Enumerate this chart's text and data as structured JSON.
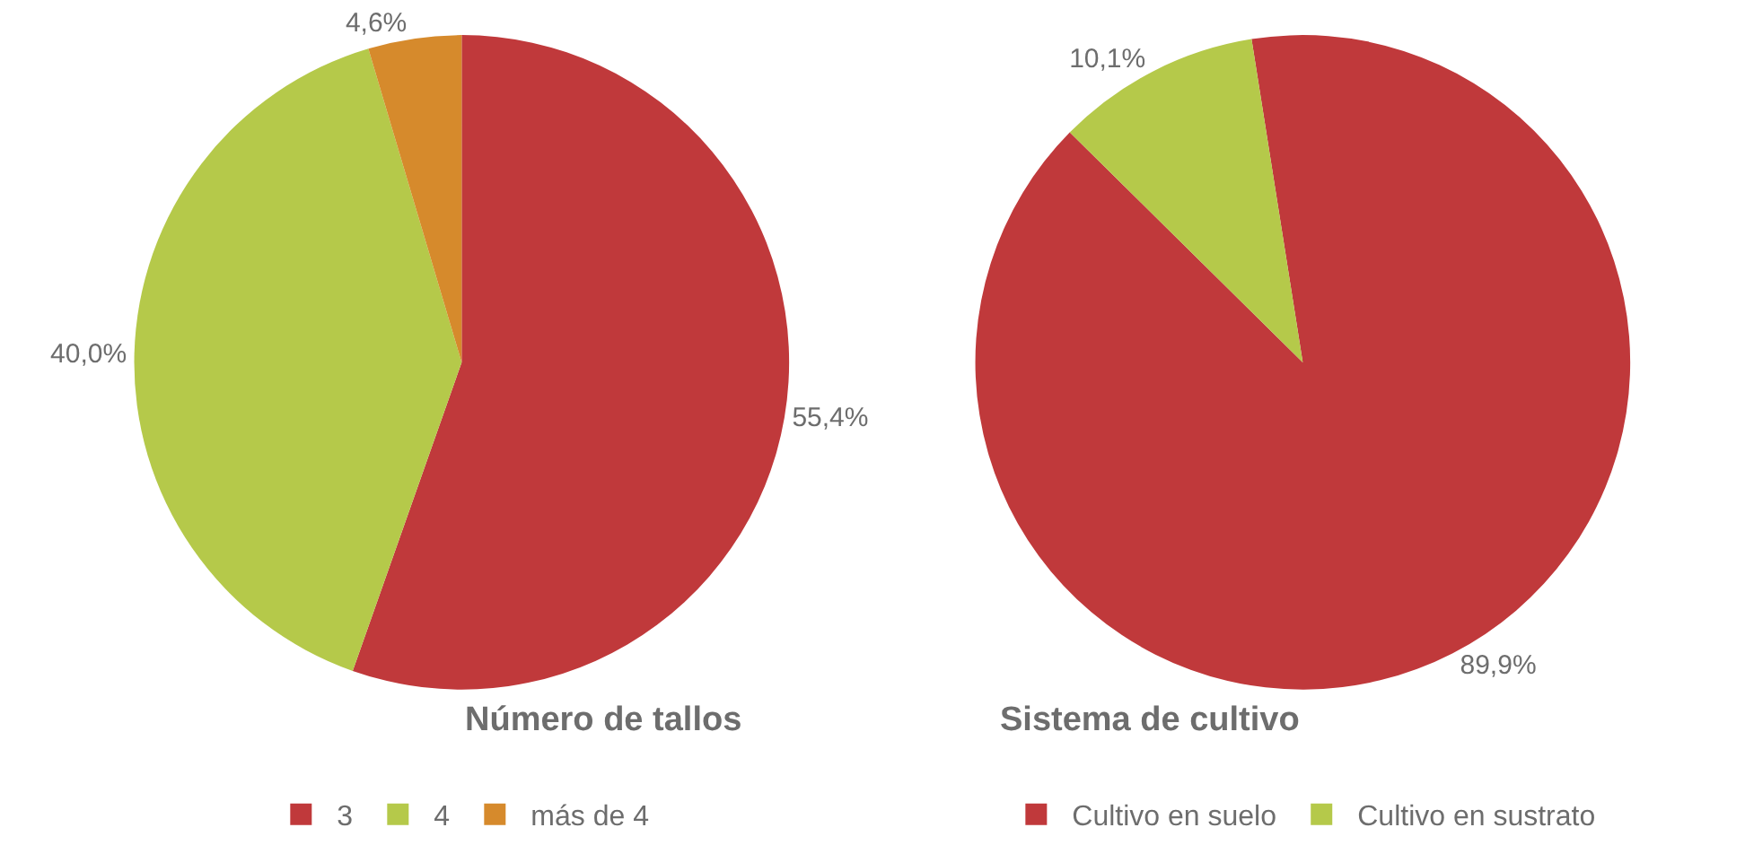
{
  "chart_data": [
    {
      "type": "pie",
      "title": "Número de tallos",
      "categories": [
        "3",
        "4",
        "más de 4"
      ],
      "values": [
        55.4,
        40.0,
        4.6
      ],
      "colors": [
        "#c0393b",
        "#b5c94a",
        "#d68a2c"
      ],
      "value_labels": [
        "55,4%",
        "40,0%",
        "4,6%"
      ],
      "legend": "bottom"
    },
    {
      "type": "pie",
      "title": "Sistema de cultivo",
      "categories": [
        "Cultivo en suelo",
        "Cultivo en sustrato"
      ],
      "values": [
        89.9,
        10.1
      ],
      "colors": [
        "#c0393b",
        "#b5c94a"
      ],
      "value_labels": [
        "89,9%",
        "10,1%"
      ],
      "legend": "bottom"
    }
  ]
}
